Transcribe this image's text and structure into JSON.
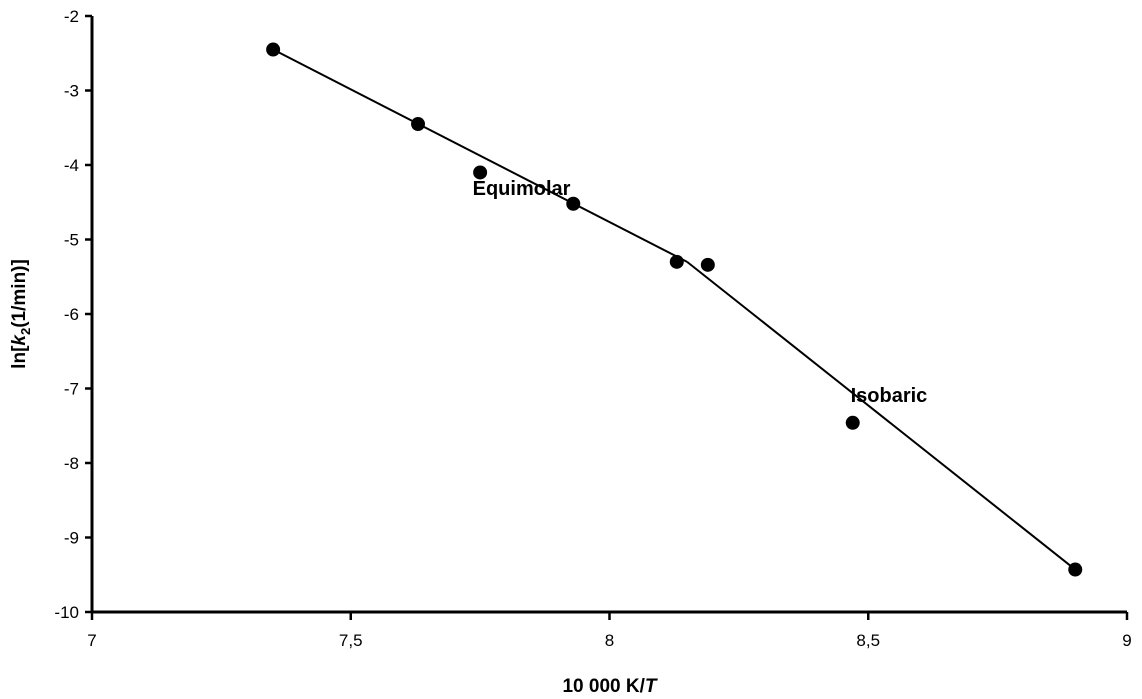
{
  "chart_data": {
    "type": "scatter",
    "xlabel_prefix": "10 000 K/",
    "xlabel_italic": "T",
    "ylabel_pre": "ln[",
    "ylabel_k": "k",
    "ylabel_sub": "2",
    "ylabel_post": "(1/min)]",
    "xlim": [
      7,
      9
    ],
    "ylim": [
      -10,
      -2
    ],
    "xticks": [
      7,
      7.5,
      8,
      8.5,
      9
    ],
    "xtick_labels": [
      "7",
      "7,5",
      "8",
      "8,5",
      "9"
    ],
    "yticks": [
      -2,
      -3,
      -4,
      -5,
      -6,
      -7,
      -8,
      -9,
      -10
    ],
    "ytick_labels": [
      "-2",
      "-3",
      "-4",
      "-5",
      "-6",
      "-7",
      "-8",
      "-9",
      "-10"
    ],
    "grid": false,
    "series": [
      {
        "points": [
          {
            "x": 7.35,
            "y": -2.45
          },
          {
            "x": 7.63,
            "y": -3.45
          },
          {
            "x": 7.75,
            "y": -4.1
          },
          {
            "x": 7.93,
            "y": -4.52
          },
          {
            "x": 8.13,
            "y": -5.3
          },
          {
            "x": 8.19,
            "y": -5.34
          },
          {
            "x": 8.47,
            "y": -7.46
          },
          {
            "x": 8.9,
            "y": -9.43
          }
        ]
      }
    ],
    "fit_lines": [
      {
        "name": "Equimolar",
        "from": {
          "x": 7.35,
          "y": -2.45
        },
        "to": {
          "x": 8.15,
          "y": -5.3
        }
      },
      {
        "name": "Isobaric",
        "from": {
          "x": 8.15,
          "y": -5.3
        },
        "to": {
          "x": 8.9,
          "y": -9.43
        }
      }
    ],
    "annotations": [
      {
        "text": "Equimolar",
        "x": 7.83,
        "y": -4.4
      },
      {
        "text": "Isobaric",
        "x": 8.54,
        "y": -7.18
      }
    ]
  }
}
